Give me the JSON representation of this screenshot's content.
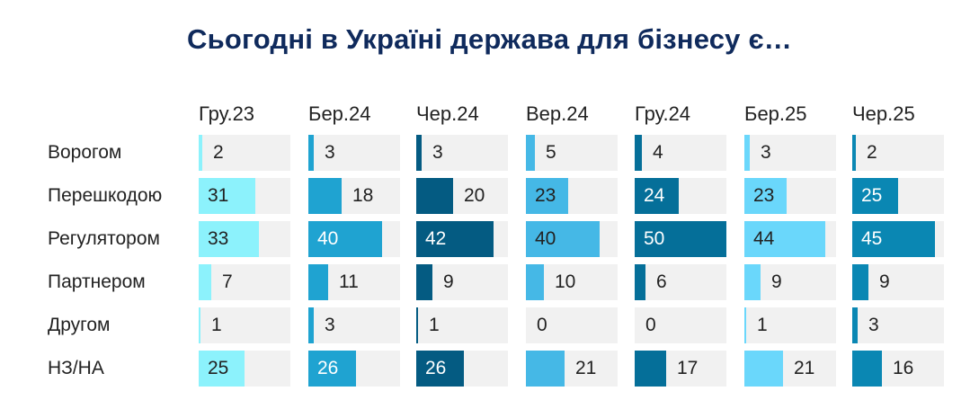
{
  "title": "Сьогодні в Україні держава для бізнесу є…",
  "chart_data": {
    "type": "bar",
    "orientation": "horizontal",
    "layout": "small-multiples",
    "title": "Сьогодні в Україні держава для бізнесу є…",
    "categories": [
      "Ворогом",
      "Перешкодою",
      "Регулятором",
      "Партнером",
      "Другом",
      "НЗ/НА"
    ],
    "series": [
      {
        "name": "Гру.23",
        "color": "#8cf2fc",
        "values": [
          2,
          31,
          33,
          7,
          1,
          25
        ]
      },
      {
        "name": "Бер.24",
        "color": "#1fa3d1",
        "values": [
          3,
          18,
          40,
          11,
          3,
          26
        ]
      },
      {
        "name": "Чер.24",
        "color": "#045b82",
        "values": [
          3,
          20,
          42,
          9,
          1,
          26
        ]
      },
      {
        "name": "Вер.24",
        "color": "#45b8e6",
        "values": [
          5,
          23,
          40,
          10,
          0,
          21
        ]
      },
      {
        "name": "Гру.24",
        "color": "#056f99",
        "values": [
          4,
          24,
          50,
          6,
          0,
          17
        ]
      },
      {
        "name": "Бер.25",
        "color": "#6ad7fb",
        "values": [
          3,
          23,
          44,
          9,
          1,
          21
        ]
      },
      {
        "name": "Чер.25",
        "color": "#0a87b3",
        "values": [
          2,
          25,
          45,
          9,
          3,
          16
        ]
      }
    ],
    "xlabel": "",
    "ylabel": "",
    "xlim": [
      0,
      50
    ],
    "grid": false,
    "legend": "column headers on top"
  },
  "track_color": "#f1f1f1",
  "dark_series": [
    "Бер.24",
    "Чер.24",
    "Гру.24",
    "Чер.25"
  ]
}
